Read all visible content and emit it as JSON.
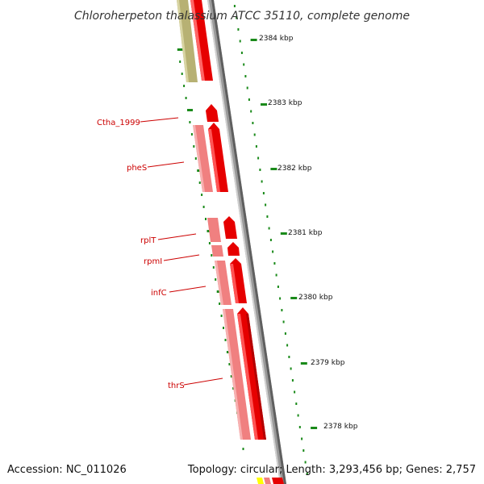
{
  "title": "Chloroherpeton thalassium ATCC 35110, complete genome",
  "footer": {
    "accession": "Accession: NC_011026",
    "summary": "Topology: circular; Length: 3,293,456 bp; Genes: 2,757"
  },
  "colors": {
    "forward_cds": "#ff0000",
    "forward_cds_shadow": "#b40000",
    "forward_gene": "#f08080",
    "other_feature": "#b5b070",
    "backbone": "#808080",
    "ruler_tick": "#1a8a1a",
    "label_text": "#cc0000",
    "partial_yellow": "#ffff00"
  },
  "scale_ticks": [
    {
      "label": "2384 kbp"
    },
    {
      "label": "2383 kbp"
    },
    {
      "label": "2382 kbp"
    },
    {
      "label": "2381 kbp"
    },
    {
      "label": "2380 kbp"
    },
    {
      "label": "2379 kbp"
    },
    {
      "label": "2378 kbp"
    }
  ],
  "gene_labels": [
    {
      "name": "Ctha_1999"
    },
    {
      "name": "pheS"
    },
    {
      "name": "rplT"
    },
    {
      "name": "rpmI"
    },
    {
      "name": "infC"
    },
    {
      "name": "thrS"
    }
  ]
}
